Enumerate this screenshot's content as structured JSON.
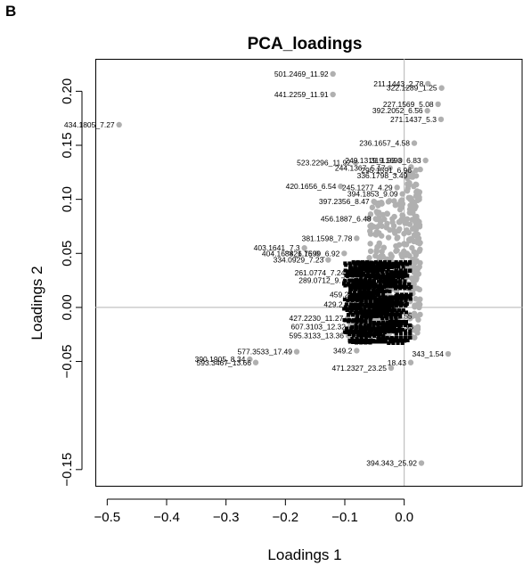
{
  "panel_label": "B",
  "chart_data": {
    "type": "scatter",
    "title": "PCA_loadings",
    "xlabel": "Loadings 1",
    "ylabel": "Loadings 2",
    "xlim": [
      -0.52,
      0.2
    ],
    "ylim": [
      -0.165,
      0.23
    ],
    "xticks": [
      -0.5,
      -0.4,
      -0.3,
      -0.2,
      -0.1,
      0.0
    ],
    "xtick_labels": [
      "−0.5",
      "−0.4",
      "−0.3",
      "−0.2",
      "−0.1",
      "0.0"
    ],
    "yticks": [
      -0.15,
      -0.05,
      0.0,
      0.05,
      0.1,
      0.15,
      0.2
    ],
    "ytick_labels": [
      "−0.15",
      "−0.05",
      "0.00",
      "0.05",
      "0.10",
      "0.15",
      "0.20"
    ],
    "ref_lines": {
      "x": 0,
      "y": 0
    },
    "grid": false,
    "legend": "none",
    "point_color": "#b0b0b0",
    "labeled_points": [
      {
        "label": "501.2469_11.92",
        "x": -0.12,
        "y": 0.216
      },
      {
        "label": "441.2259_11.91",
        "x": -0.12,
        "y": 0.197
      },
      {
        "label": "211.1443_2.78",
        "x": 0.04,
        "y": 0.207
      },
      {
        "label": "322.1289_1.25",
        "x": 0.063,
        "y": 0.203
      },
      {
        "label": "434.1805_7.27",
        "x": -0.48,
        "y": 0.169
      },
      {
        "label": "227.1569_5.08",
        "x": 0.057,
        "y": 0.188
      },
      {
        "label": "392.2052_6.56",
        "x": 0.039,
        "y": 0.182
      },
      {
        "label": "271.1437_5.3",
        "x": 0.062,
        "y": 0.174
      },
      {
        "label": "236.1657_4.58",
        "x": 0.017,
        "y": 0.152
      },
      {
        "label": "523.2296_11.92",
        "x": -0.082,
        "y": 0.134
      },
      {
        "label": "249.1319_1.93",
        "x": -0.007,
        "y": 0.136
      },
      {
        "label": "319.1693_6.83",
        "x": 0.036,
        "y": 0.136
      },
      {
        "label": "244.1367_5.17",
        "x": -0.024,
        "y": 0.129
      },
      {
        "label": "295.1591_6.96",
        "x": 0.02,
        "y": 0.127
      },
      {
        "label": "336.1798_3.49",
        "x": 0.013,
        "y": 0.122
      },
      {
        "label": "420.1656_6.54",
        "x": -0.107,
        "y": 0.112
      },
      {
        "label": "245.1277_4.29",
        "x": -0.012,
        "y": 0.111
      },
      {
        "label": "394.1853_9.09",
        "x": -0.003,
        "y": 0.105
      },
      {
        "label": "397.2356_8.47",
        "x": -0.051,
        "y": 0.098
      },
      {
        "label": "456.1887_6.48",
        "x": -0.048,
        "y": 0.082
      },
      {
        "label": "381.1598_7.78",
        "x": -0.08,
        "y": 0.064
      },
      {
        "label": "403.1641_7.3",
        "x": -0.168,
        "y": 0.055
      },
      {
        "label": "404.1688_6.75",
        "x": -0.147,
        "y": 0.05
      },
      {
        "label": "421.1699_6.92",
        "x": -0.101,
        "y": 0.05
      },
      {
        "label": "334.0929_7.23",
        "x": -0.128,
        "y": 0.044
      },
      {
        "label": "261.0774_7.24",
        "x": -0.092,
        "y": 0.032
      },
      {
        "label": "289.0712_9.77",
        "x": -0.085,
        "y": 0.025
      },
      {
        "label": "459.2",
        "x": -0.086,
        "y": 0.012
      },
      {
        "label": "429.2",
        "x": -0.096,
        "y": 0.003
      },
      {
        "label": "427.2230_11.27",
        "x": -0.095,
        "y": -0.01
      },
      {
        "label": "607.3103_12.32",
        "x": -0.091,
        "y": -0.018
      },
      {
        "label": "595.3133_13.36",
        "x": -0.094,
        "y": -0.026
      },
      {
        "label": "577.3533_17.49",
        "x": -0.181,
        "y": -0.041
      },
      {
        "label": "390.1905_8.34",
        "x": -0.26,
        "y": -0.048
      },
      {
        "label": "593.3467_13.66",
        "x": -0.25,
        "y": -0.051
      },
      {
        "label": "349.2",
        "x": -0.08,
        "y": -0.04
      },
      {
        "label": "1.55",
        "x": 0.021,
        "y": -0.008
      },
      {
        "label": "4.93",
        "x": 0.023,
        "y": -0.018
      },
      {
        "label": "343_1.54",
        "x": 0.074,
        "y": -0.043
      },
      {
        "label": "18.43",
        "x": 0.011,
        "y": -0.051
      },
      {
        "label": "471.2327_23.25",
        "x": -0.022,
        "y": -0.056
      },
      {
        "label": "394.343_25.92",
        "x": 0.029,
        "y": -0.144
      }
    ]
  }
}
